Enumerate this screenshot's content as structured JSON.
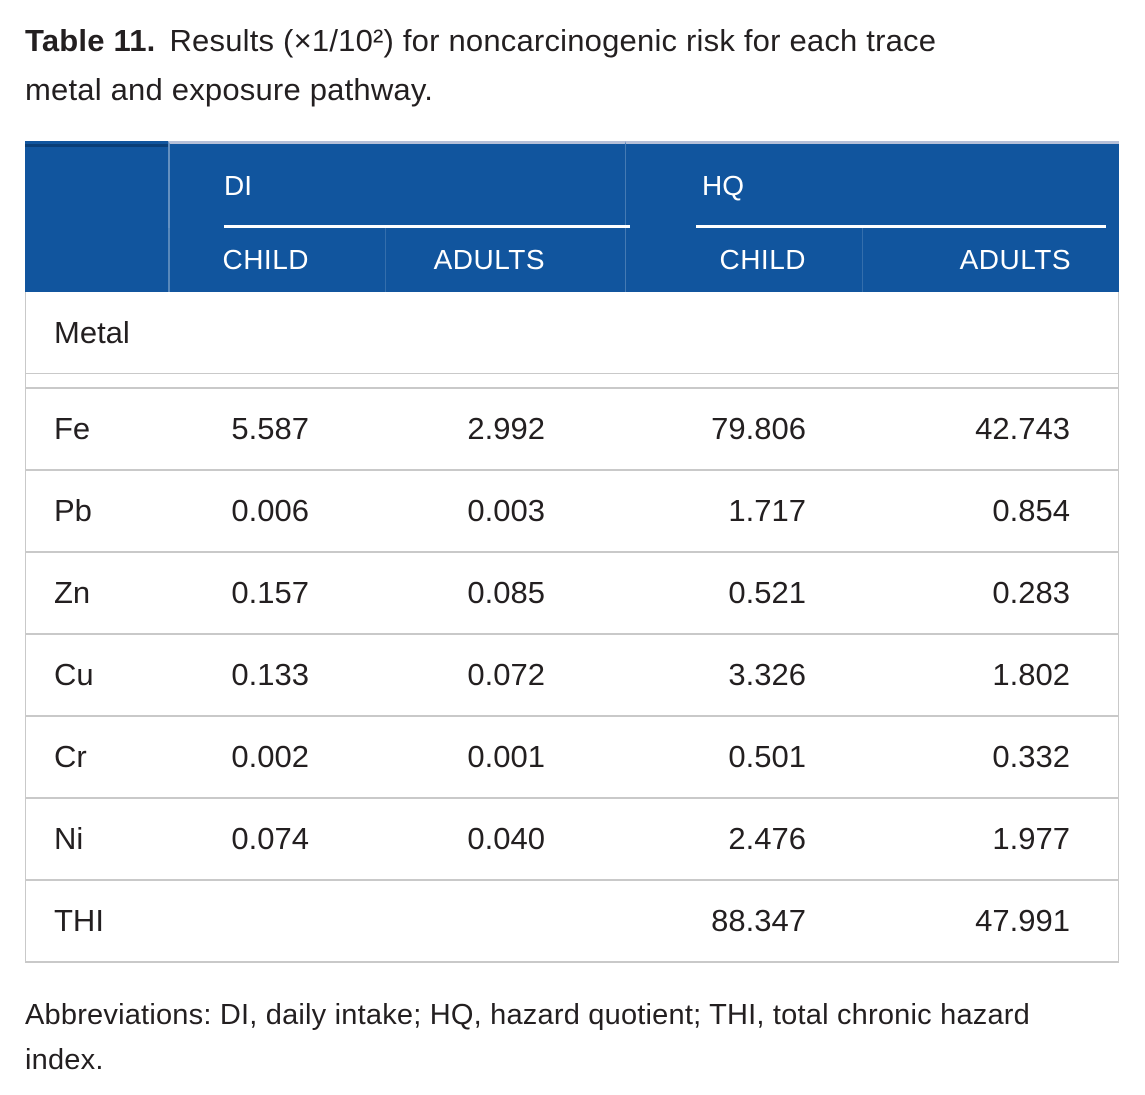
{
  "title": {
    "label": "Table 11.",
    "line1": "Results (×1/10²) for noncarcinogenic risk for each trace",
    "line2": "metal and exposure pathway."
  },
  "table": {
    "column_groups": [
      {
        "label": "DI"
      },
      {
        "label": "HQ"
      }
    ],
    "sub_headers": [
      "CHILD",
      "ADULTS",
      "CHILD",
      "ADULTS"
    ],
    "section_label": "Metal",
    "rows": [
      {
        "metal": "Fe",
        "di_child": "5.587",
        "di_adults": "2.992",
        "hq_child": "79.806",
        "hq_adults": "42.743"
      },
      {
        "metal": "Pb",
        "di_child": "0.006",
        "di_adults": "0.003",
        "hq_child": "1.717",
        "hq_adults": "0.854"
      },
      {
        "metal": "Zn",
        "di_child": "0.157",
        "di_adults": "0.085",
        "hq_child": "0.521",
        "hq_adults": "0.283"
      },
      {
        "metal": "Cu",
        "di_child": "0.133",
        "di_adults": "0.072",
        "hq_child": "3.326",
        "hq_adults": "1.802"
      },
      {
        "metal": "Cr",
        "di_child": "0.002",
        "di_adults": "0.001",
        "hq_child": "0.501",
        "hq_adults": "0.332"
      },
      {
        "metal": "Ni",
        "di_child": "0.074",
        "di_adults": "0.040",
        "hq_child": "2.476",
        "hq_adults": "1.977"
      },
      {
        "metal": "THI",
        "di_child": "",
        "di_adults": "",
        "hq_child": "88.347",
        "hq_adults": "47.991"
      }
    ],
    "colors": {
      "header_bg": "#11559e",
      "header_text": "#ffffff",
      "header_top_strip_left": "#0a3e77",
      "header_top_strip_right": "#b6c0d8",
      "grid_line": "#c9c9c9",
      "body_text": "#231f20"
    }
  },
  "footnote": {
    "line1": "Abbreviations: DI, daily intake; HQ, hazard quotient; THI, total chronic hazard",
    "line2": "index."
  }
}
